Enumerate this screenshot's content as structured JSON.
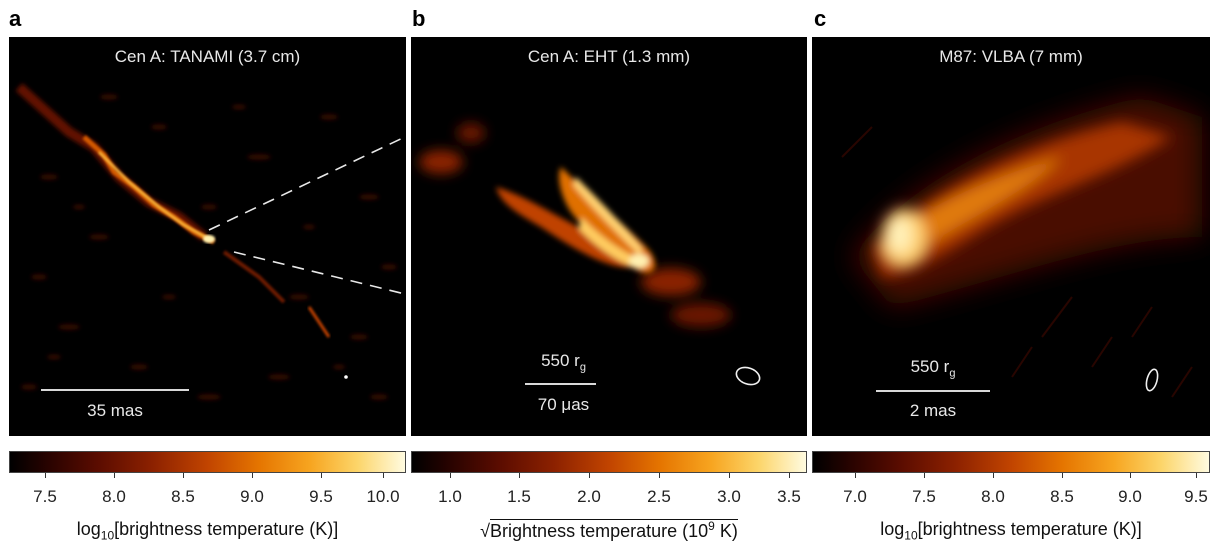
{
  "panels": [
    {
      "letter": "a",
      "title": "Cen A: TANAMI (3.7 cm)",
      "scale_label": "35 mas",
      "colorbar": {
        "ticks": [
          "7.5",
          "8.0",
          "8.5",
          "9.0",
          "9.5",
          "10.0"
        ],
        "label_prefix": "log",
        "label_sub": "10",
        "label_main": "[brightness temperature (K)]"
      }
    },
    {
      "letter": "b",
      "title": "Cen A: EHT (1.3 mm)",
      "scale_label_top": "550 r",
      "scale_label_top_sub": "g",
      "scale_label": "70 μas",
      "colorbar": {
        "ticks": [
          "1.0",
          "1.5",
          "2.0",
          "2.5",
          "3.0",
          "3.5"
        ],
        "label_main": "Brightness temperature (10",
        "label_sup": "9",
        "label_end": " K)"
      }
    },
    {
      "letter": "c",
      "title": "M87: VLBA (7 mm)",
      "scale_label_top": "550 r",
      "scale_label_top_sub": "g",
      "scale_label": "2 mas",
      "colorbar": {
        "ticks": [
          "7.0",
          "7.5",
          "8.0",
          "8.5",
          "9.0",
          "9.5"
        ],
        "label_prefix": "log",
        "label_sub": "10",
        "label_main": "[brightness temperature (K)]"
      }
    }
  ],
  "colors": {
    "background": "#000000",
    "jet_core": "#fff2b0",
    "jet_mid": "#f08a00",
    "jet_low": "#7a1800",
    "annotation": "#e8e8e8"
  }
}
